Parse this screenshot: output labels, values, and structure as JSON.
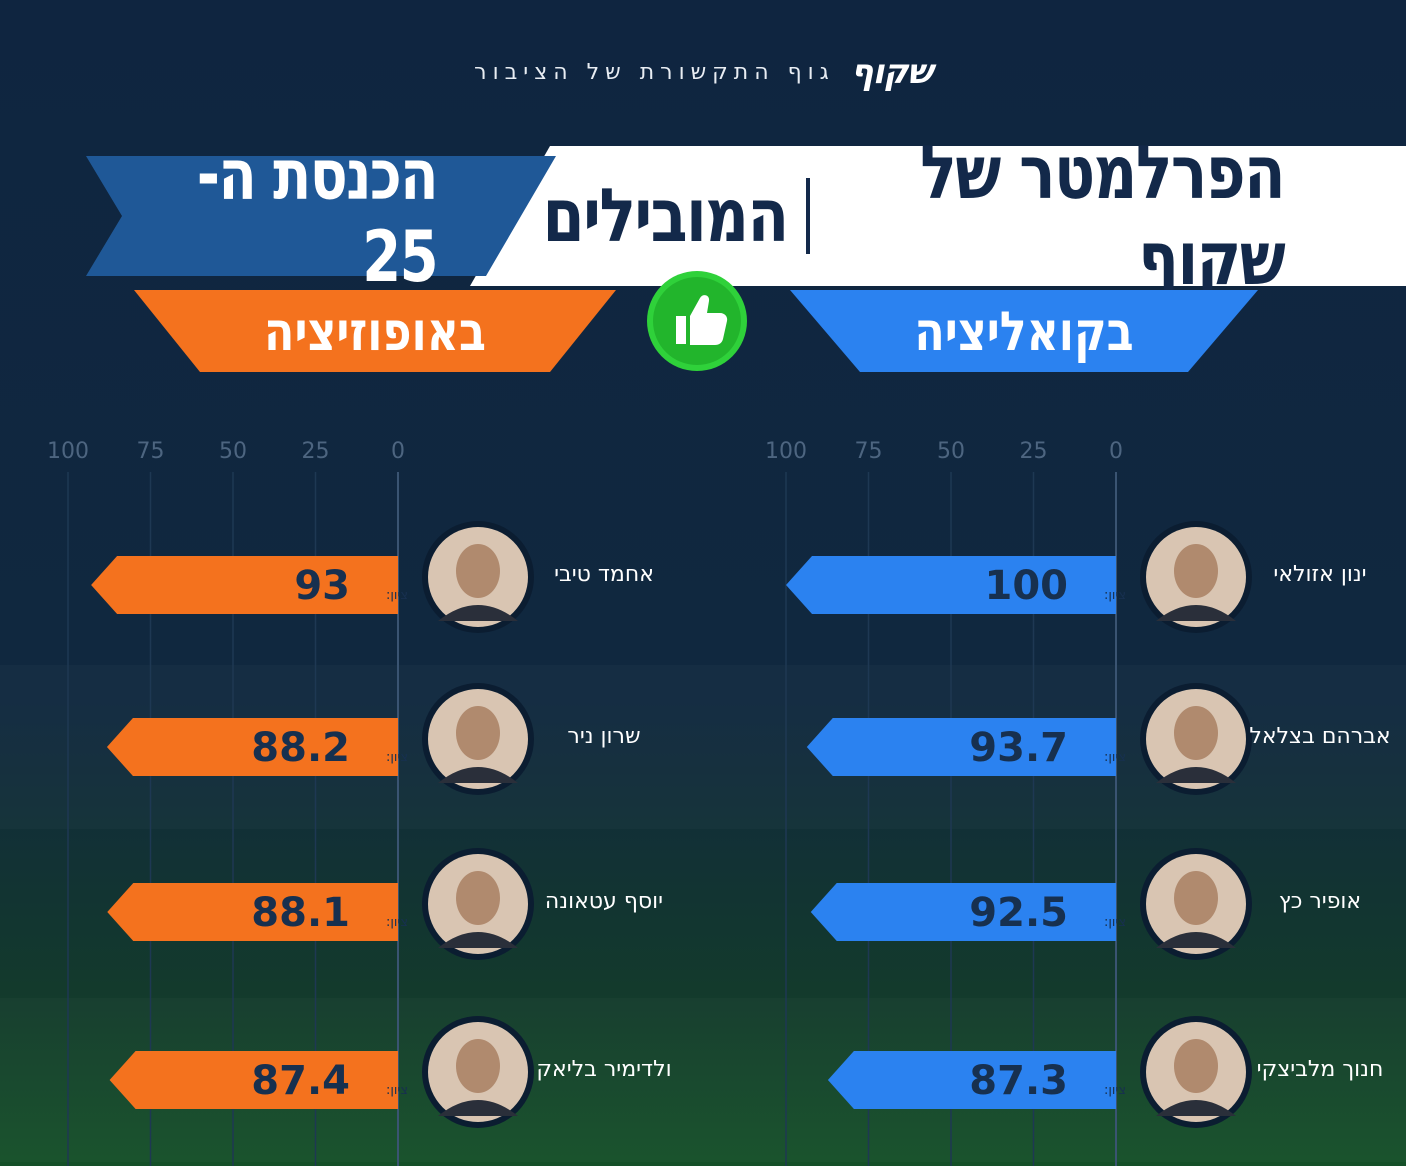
{
  "brand": {
    "logo": "שקוף",
    "tagline": "גוף התקשורת של הציבור"
  },
  "title": {
    "main": "הפרלמטר של שקוף",
    "sub": "המובילים",
    "knesset": "הכנסת ה- 25"
  },
  "tags": {
    "coalition": "בקואליציה",
    "opposition": "באופוזיציה"
  },
  "icons": {
    "thumb": "thumbs-up-icon"
  },
  "colors": {
    "coalition": "#2b82f0",
    "opposition": "#f4721e",
    "navy": "#13294a"
  },
  "chart_data": [
    {
      "type": "bar",
      "orientation": "horizontal",
      "group": "בקואליציה",
      "score_label": "ציון:",
      "ticks": [
        "0",
        "25",
        "50",
        "75",
        "100"
      ],
      "xlim": [
        0,
        100
      ],
      "categories": [
        "ינון אזולאי",
        "אברהם בצלאל",
        "אופיר כץ",
        "חנוך מלביצקי"
      ],
      "values": [
        100,
        93.7,
        92.5,
        87.3
      ],
      "value_labels": [
        "100",
        "93.7",
        "92.5",
        "87.3"
      ]
    },
    {
      "type": "bar",
      "orientation": "horizontal",
      "group": "באופוזיציה",
      "score_label": "ציון:",
      "ticks": [
        "0",
        "25",
        "50",
        "75",
        "100"
      ],
      "xlim": [
        0,
        100
      ],
      "categories": [
        "אחמד טיבי",
        "שרון ניר",
        "יוסף עטאונה",
        "ולדימיר בליאק"
      ],
      "values": [
        93,
        88.2,
        88.1,
        87.4
      ],
      "value_labels": [
        "93",
        "88.2",
        "88.1",
        "87.4"
      ]
    }
  ]
}
